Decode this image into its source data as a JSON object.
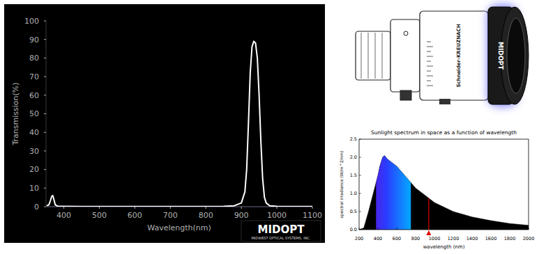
{
  "chart_data": [
    {
      "type": "line",
      "xlabel": "Wavelength(nm)",
      "ylabel": "Transmission(%)",
      "x": [
        352,
        358,
        362,
        366,
        369,
        372,
        376,
        382,
        400,
        450,
        500,
        600,
        700,
        800,
        850,
        880,
        900,
        910,
        915,
        920,
        925,
        930,
        935,
        940,
        945,
        950,
        955,
        960,
        965,
        970,
        980,
        1000,
        1050,
        1100
      ],
      "values": [
        0.5,
        1,
        3,
        5.5,
        6,
        4,
        1,
        0.3,
        0.2,
        0.1,
        0.1,
        0.1,
        0.1,
        0.1,
        0.2,
        0.5,
        2,
        8,
        20,
        45,
        72,
        86,
        89,
        88,
        80,
        60,
        35,
        15,
        5,
        2,
        0.5,
        0.2,
        0.1,
        0.1
      ],
      "color": "#ffffff",
      "xlim": [
        350,
        1100
      ],
      "xticks": [
        400,
        500,
        600,
        700,
        800,
        900,
        1000,
        1100
      ],
      "ylim": [
        0,
        100
      ],
      "yticks": [
        0,
        10,
        20,
        30,
        40,
        50,
        60,
        70,
        80,
        90,
        100
      ],
      "grid": false,
      "annotations": [
        "MIDOPT",
        "MIDWEST OPTICAL SYSTEMS, INC."
      ]
    },
    {
      "type": "area",
      "title": "Sunlight spectrum in space as a function of wavelength",
      "xlabel": "wavelength (nm)",
      "ylabel": "spectral irradiance (W/m^2/nm)",
      "x": [
        200,
        250,
        300,
        350,
        400,
        420,
        450,
        470,
        500,
        550,
        600,
        700,
        800,
        900,
        1000,
        1200,
        1400,
        1600,
        1800,
        2000
      ],
      "values": [
        0,
        0.05,
        0.5,
        1.0,
        1.5,
        1.75,
        2.0,
        2.05,
        1.95,
        1.85,
        1.75,
        1.45,
        1.15,
        0.95,
        0.75,
        0.5,
        0.35,
        0.25,
        0.17,
        0.12
      ],
      "color": "#000000",
      "xlim": [
        200,
        2000
      ],
      "xticks": [
        200,
        400,
        600,
        800,
        1000,
        1200,
        1400,
        1600,
        1800,
        2000
      ],
      "ylim": [
        0,
        2.5
      ],
      "yticks": [
        {
          "value": 0,
          "label": "0.0"
        },
        0.5,
        {
          "value": 1,
          "label": "1.0"
        },
        1.5,
        {
          "value": 2,
          "label": "2.0"
        },
        2.5
      ],
      "visible_band": [
        380,
        750
      ],
      "highlight_x": 940,
      "grid": false
    }
  ],
  "illustration": {
    "lens_label": "Schneider-KREUZNACH",
    "filter_label": "MIDOPT"
  }
}
